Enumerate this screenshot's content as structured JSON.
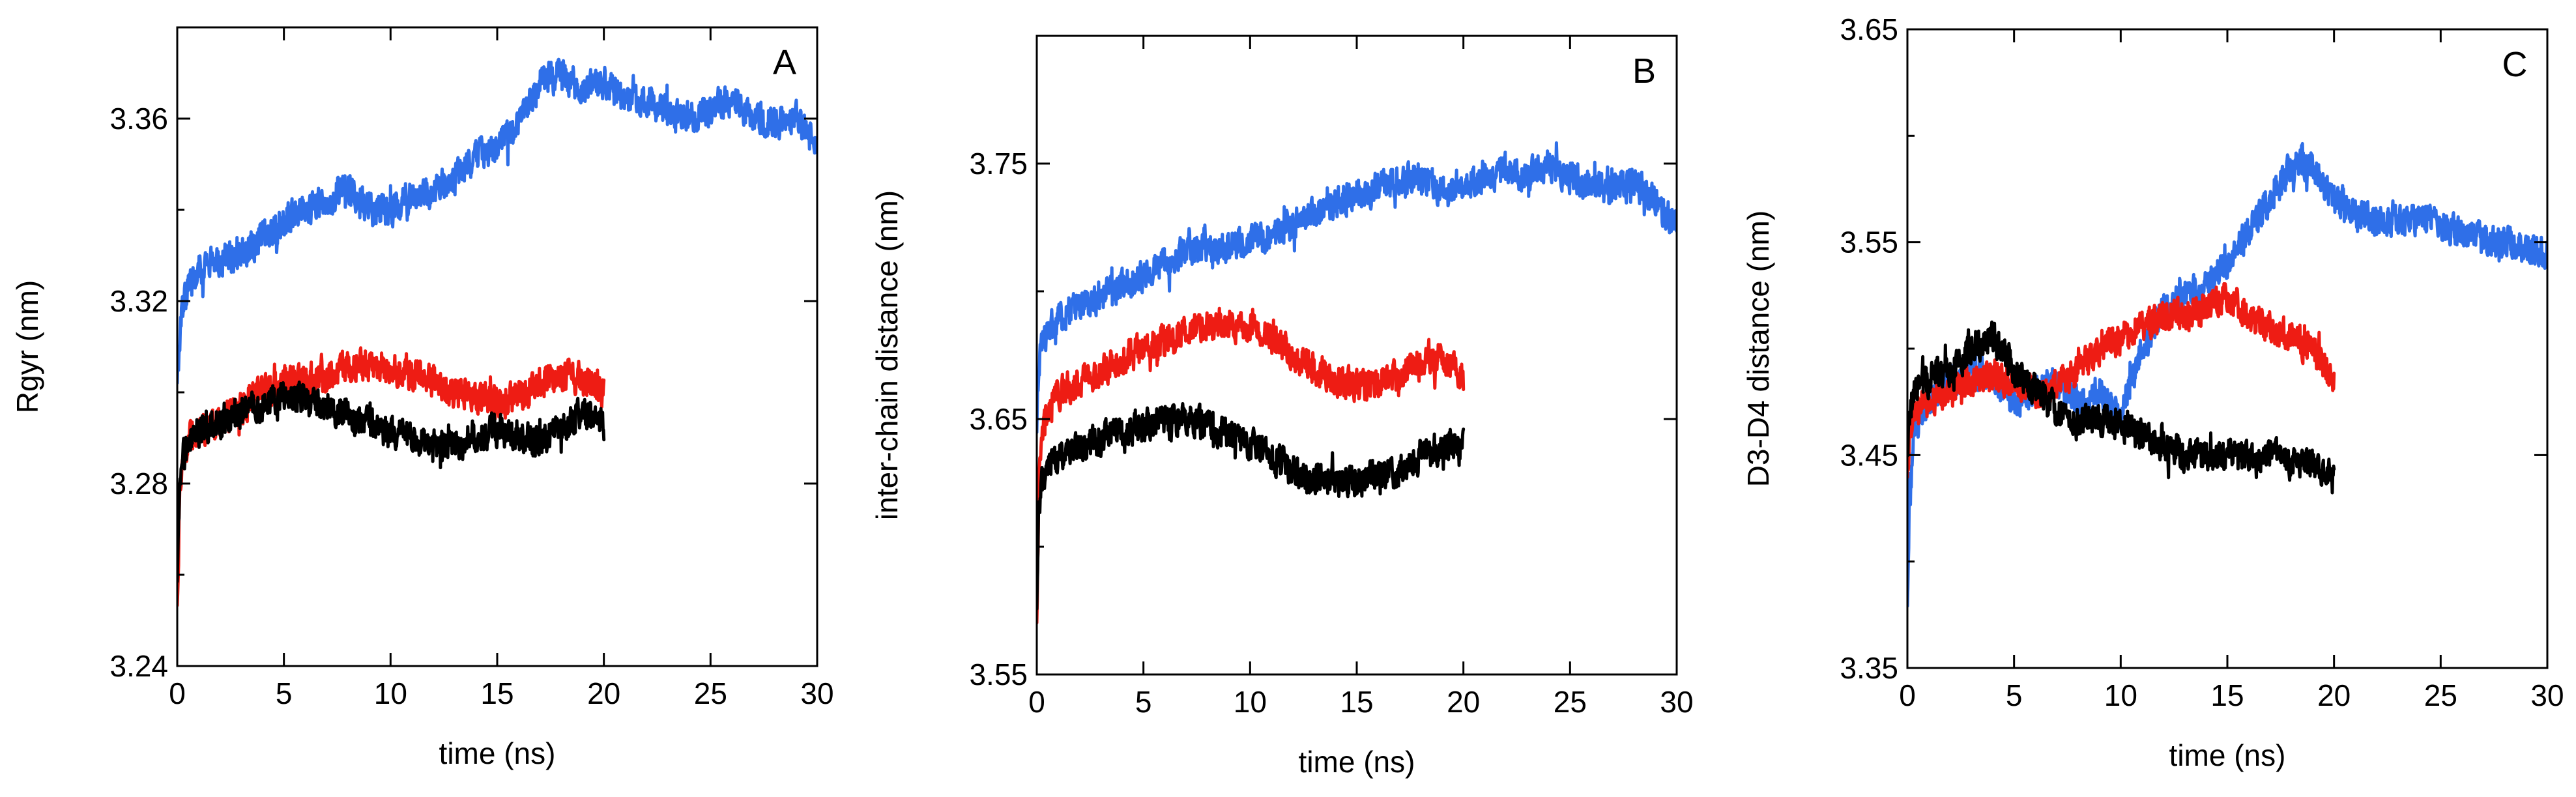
{
  "chart_data": [
    {
      "type": "line",
      "panel": "A",
      "title": "",
      "xlabel": "time (ns)",
      "ylabel": "Rgyr (nm)",
      "xlim": [
        0,
        30
      ],
      "ylim": [
        3.24,
        3.38
      ],
      "xticks": [
        0,
        5,
        10,
        15,
        20,
        25,
        30
      ],
      "xtick_labels": [
        "0",
        "5",
        "10",
        "15",
        "20",
        "25",
        "30"
      ],
      "yticks": [
        3.24,
        3.28,
        3.32,
        3.36
      ],
      "ytick_labels": [
        "3.24",
        "3.28",
        "3.32",
        "3.36"
      ],
      "grid": false,
      "legend": "none",
      "series": [
        {
          "name": "blue",
          "color": "#2f6fe8",
          "x": [
            0,
            0.1,
            0.3,
            0.6,
            1,
            1.5,
            2,
            3,
            4,
            5,
            6,
            7,
            8,
            9,
            10,
            11,
            12,
            13,
            14,
            15,
            16,
            17,
            18,
            19,
            20,
            21,
            22,
            23,
            24,
            25,
            26,
            27,
            28,
            29,
            30
          ],
          "values": [
            3.301,
            3.31,
            3.32,
            3.324,
            3.327,
            3.328,
            3.329,
            3.33,
            3.334,
            3.338,
            3.34,
            3.342,
            3.345,
            3.34,
            3.34,
            3.343,
            3.344,
            3.347,
            3.351,
            3.354,
            3.358,
            3.368,
            3.37,
            3.366,
            3.368,
            3.364,
            3.364,
            3.361,
            3.36,
            3.362,
            3.365,
            3.36,
            3.359,
            3.36,
            3.354
          ]
        },
        {
          "name": "red",
          "color": "#ee1c14",
          "x": [
            0,
            0.1,
            0.3,
            0.6,
            1,
            1.5,
            2,
            3,
            4,
            5,
            6,
            7,
            8,
            9,
            10,
            11,
            12,
            13,
            14,
            15,
            16,
            17,
            18,
            19,
            20
          ],
          "values": [
            3.252,
            3.275,
            3.286,
            3.29,
            3.291,
            3.292,
            3.294,
            3.297,
            3.3,
            3.302,
            3.303,
            3.303,
            3.306,
            3.306,
            3.305,
            3.304,
            3.302,
            3.3,
            3.299,
            3.298,
            3.299,
            3.302,
            3.304,
            3.303,
            3.3
          ]
        },
        {
          "name": "black",
          "color": "#000000",
          "x": [
            0,
            0.1,
            0.3,
            0.6,
            1,
            1.5,
            2,
            3,
            4,
            5,
            6,
            7,
            8,
            9,
            10,
            11,
            12,
            13,
            14,
            15,
            16,
            17,
            18,
            19,
            20
          ],
          "values": [
            3.257,
            3.277,
            3.286,
            3.29,
            3.291,
            3.293,
            3.294,
            3.296,
            3.297,
            3.299,
            3.298,
            3.297,
            3.295,
            3.293,
            3.291,
            3.289,
            3.289,
            3.288,
            3.29,
            3.292,
            3.291,
            3.289,
            3.292,
            3.295,
            3.293
          ]
        }
      ]
    },
    {
      "type": "line",
      "panel": "B",
      "title": "",
      "xlabel": "time (ns)",
      "ylabel": "inter-chain distance (nm)",
      "xlim": [
        0,
        30
      ],
      "ylim": [
        3.55,
        3.8
      ],
      "xticks": [
        0,
        5,
        10,
        15,
        20,
        25,
        30
      ],
      "xtick_labels": [
        "0",
        "5",
        "10",
        "15",
        "20",
        "25",
        "30"
      ],
      "yticks": [
        3.55,
        3.65,
        3.75
      ],
      "ytick_labels": [
        "3.55",
        "3.65",
        "3.75"
      ],
      "grid": false,
      "legend": "none",
      "series": [
        {
          "name": "blue",
          "color": "#2f6fe8",
          "x": [
            0,
            0.1,
            0.3,
            0.6,
            1,
            1.5,
            2,
            3,
            4,
            5,
            6,
            7,
            8,
            9,
            10,
            11,
            12,
            13,
            14,
            15,
            16,
            17,
            18,
            19,
            20,
            21,
            22,
            23,
            24,
            25,
            26,
            27,
            28,
            29,
            30
          ],
          "values": [
            3.65,
            3.672,
            3.682,
            3.685,
            3.69,
            3.692,
            3.694,
            3.698,
            3.702,
            3.706,
            3.712,
            3.716,
            3.716,
            3.718,
            3.72,
            3.722,
            3.726,
            3.73,
            3.735,
            3.738,
            3.741,
            3.744,
            3.744,
            3.74,
            3.743,
            3.745,
            3.748,
            3.745,
            3.75,
            3.745,
            3.742,
            3.74,
            3.743,
            3.735,
            3.725
          ]
        },
        {
          "name": "red",
          "color": "#ee1c14",
          "x": [
            0,
            0.1,
            0.3,
            0.6,
            1,
            1.5,
            2,
            3,
            4,
            5,
            6,
            7,
            8,
            9,
            10,
            11,
            12,
            13,
            14,
            15,
            16,
            17,
            18,
            19,
            20
          ],
          "values": [
            3.575,
            3.625,
            3.645,
            3.655,
            3.66,
            3.662,
            3.664,
            3.668,
            3.674,
            3.677,
            3.68,
            3.684,
            3.686,
            3.688,
            3.686,
            3.682,
            3.675,
            3.67,
            3.665,
            3.663,
            3.664,
            3.667,
            3.672,
            3.675,
            3.665
          ]
        },
        {
          "name": "black",
          "color": "#000000",
          "x": [
            0,
            0.1,
            0.3,
            0.6,
            1,
            1.5,
            2,
            3,
            4,
            5,
            6,
            7,
            8,
            9,
            10,
            11,
            12,
            13,
            14,
            15,
            16,
            17,
            18,
            19,
            20
          ],
          "values": [
            3.58,
            3.615,
            3.628,
            3.632,
            3.635,
            3.637,
            3.64,
            3.642,
            3.645,
            3.648,
            3.65,
            3.65,
            3.648,
            3.645,
            3.64,
            3.635,
            3.63,
            3.628,
            3.625,
            3.626,
            3.628,
            3.63,
            3.636,
            3.64,
            3.64
          ]
        }
      ]
    },
    {
      "type": "line",
      "panel": "C",
      "title": "",
      "xlabel": "time (ns)",
      "ylabel": "D3-D4 distance (nm)",
      "xlim": [
        0,
        30
      ],
      "ylim": [
        3.35,
        3.65
      ],
      "xticks": [
        0,
        5,
        10,
        15,
        20,
        25,
        30
      ],
      "xtick_labels": [
        "0",
        "5",
        "10",
        "15",
        "20",
        "25",
        "30"
      ],
      "yticks": [
        3.35,
        3.45,
        3.55,
        3.65
      ],
      "ytick_labels": [
        "3.35",
        "3.45",
        "3.55",
        "3.65"
      ],
      "grid": false,
      "legend": "none",
      "series": [
        {
          "name": "blue",
          "color": "#2f6fe8",
          "x": [
            0,
            0.1,
            0.3,
            0.6,
            1,
            1.5,
            2,
            3,
            4,
            5,
            6,
            7,
            8,
            9,
            10,
            11,
            12,
            13,
            14,
            15,
            16,
            17,
            18,
            19,
            20,
            21,
            22,
            23,
            24,
            25,
            26,
            27,
            28,
            29,
            30
          ],
          "values": [
            3.38,
            3.43,
            3.46,
            3.47,
            3.475,
            3.48,
            3.485,
            3.49,
            3.485,
            3.475,
            3.48,
            3.485,
            3.475,
            3.48,
            3.47,
            3.5,
            3.52,
            3.525,
            3.53,
            3.54,
            3.555,
            3.57,
            3.585,
            3.585,
            3.57,
            3.565,
            3.56,
            3.56,
            3.56,
            3.558,
            3.555,
            3.55,
            3.55,
            3.548,
            3.545
          ]
        },
        {
          "name": "red",
          "color": "#ee1c14",
          "x": [
            0,
            0.1,
            0.3,
            0.6,
            1,
            1.5,
            2,
            3,
            4,
            5,
            6,
            7,
            8,
            9,
            10,
            11,
            12,
            13,
            14,
            15,
            16,
            17,
            18,
            19,
            20
          ],
          "values": [
            3.44,
            3.46,
            3.47,
            3.472,
            3.475,
            3.478,
            3.48,
            3.485,
            3.488,
            3.485,
            3.48,
            3.482,
            3.49,
            3.5,
            3.505,
            3.51,
            3.515,
            3.515,
            3.52,
            3.525,
            3.515,
            3.51,
            3.505,
            3.5,
            3.485
          ]
        },
        {
          "name": "black",
          "color": "#000000",
          "x": [
            0,
            0.1,
            0.3,
            0.6,
            1,
            1.5,
            2,
            3,
            4,
            5,
            6,
            7,
            8,
            9,
            10,
            11,
            12,
            13,
            14,
            15,
            16,
            17,
            18,
            19,
            20
          ],
          "values": [
            3.45,
            3.47,
            3.48,
            3.482,
            3.485,
            3.488,
            3.49,
            3.5,
            3.505,
            3.49,
            3.48,
            3.47,
            3.465,
            3.468,
            3.465,
            3.46,
            3.455,
            3.45,
            3.45,
            3.45,
            3.448,
            3.45,
            3.445,
            3.445,
            3.44
          ]
        }
      ]
    }
  ]
}
